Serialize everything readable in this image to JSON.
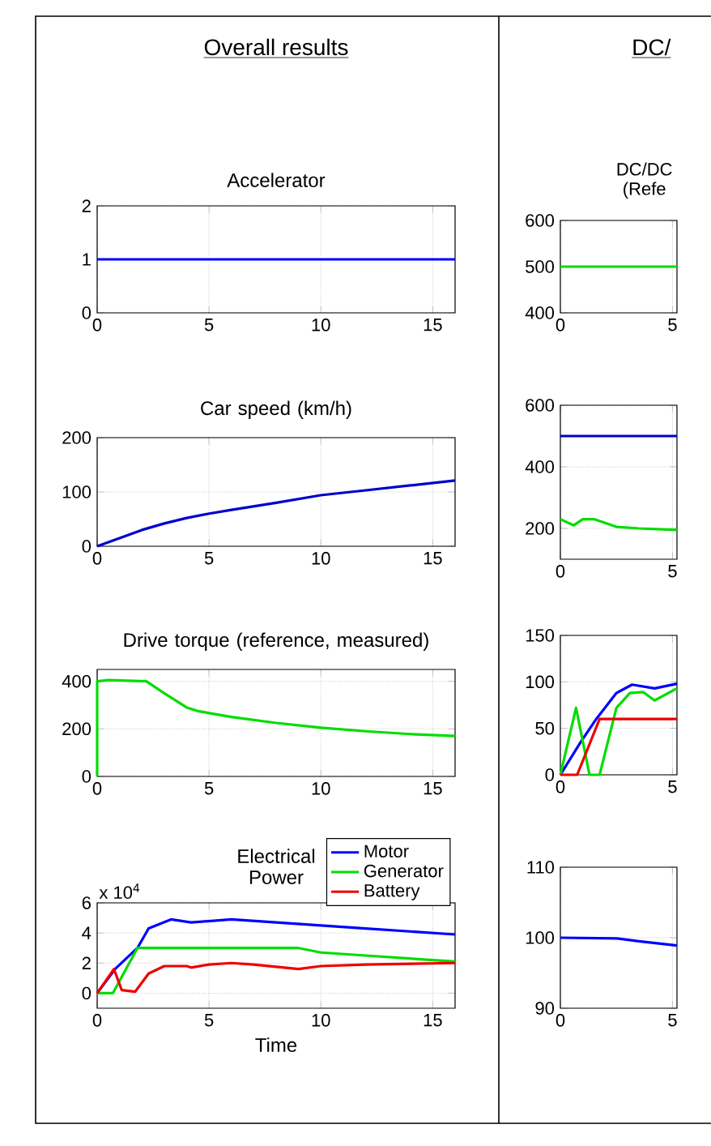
{
  "chart_data": [
    {
      "type": "line",
      "title": "Overall results",
      "subtitle": "Accelerator",
      "xlim": [
        0,
        16
      ],
      "ylim": [
        0,
        2
      ],
      "xticks": [
        0,
        5,
        10,
        15
      ],
      "yticks": [
        0,
        1,
        2
      ],
      "grid": true,
      "series": [
        {
          "color": "#0000ff",
          "x": [
            0,
            16
          ],
          "values": [
            1,
            1
          ]
        }
      ]
    },
    {
      "type": "line",
      "title": "Car speed (km/h)",
      "xlim": [
        0,
        16
      ],
      "ylim": [
        0,
        200
      ],
      "xticks": [
        0,
        5,
        10,
        15
      ],
      "yticks": [
        0,
        100,
        200
      ],
      "grid": true,
      "series": [
        {
          "color": "#0000cc",
          "x": [
            0,
            1,
            2,
            3,
            4,
            5,
            6,
            8,
            10,
            12,
            14,
            16
          ],
          "values": [
            0,
            15,
            30,
            42,
            52,
            60,
            67,
            80,
            94,
            103,
            112,
            121
          ]
        }
      ]
    },
    {
      "type": "line",
      "title": "Drive torque (reference, measured)",
      "xlim": [
        0,
        16
      ],
      "ylim": [
        0,
        450
      ],
      "xticks": [
        0,
        5,
        10,
        15
      ],
      "yticks": [
        0,
        200,
        400
      ],
      "grid": true,
      "series": [
        {
          "color": "#00dd00",
          "x": [
            0,
            0,
            0.5,
            2.2,
            3,
            4,
            4.5,
            6,
            8,
            10,
            12,
            14,
            16
          ],
          "values": [
            0,
            400,
            405,
            400,
            350,
            290,
            275,
            250,
            225,
            205,
            190,
            178,
            170
          ]
        }
      ]
    },
    {
      "type": "line",
      "title": "Electrical Power",
      "xlabel": "Time",
      "annotations": [
        "x 10$^{4}$"
      ],
      "xlim": [
        0,
        16
      ],
      "ylim": [
        -1,
        6
      ],
      "xticks": [
        0,
        5,
        10,
        15
      ],
      "yticks": [
        0,
        2,
        4,
        6
      ],
      "grid": true,
      "legend": "top right",
      "series": [
        {
          "name": "Motor",
          "color": "#0000ff",
          "x": [
            0,
            0.8,
            1.8,
            2.3,
            3.3,
            4.2,
            6,
            9,
            12,
            16
          ],
          "values": [
            0,
            1.6,
            3.0,
            4.3,
            4.9,
            4.7,
            4.9,
            4.6,
            4.3,
            3.9
          ]
        },
        {
          "name": "Generator",
          "color": "#00dd00",
          "x": [
            0,
            0.7,
            1.8,
            9,
            10,
            12,
            16
          ],
          "values": [
            0,
            0,
            3.0,
            3.0,
            2.7,
            2.5,
            2.1
          ]
        },
        {
          "name": "Battery",
          "color": "#ee0000",
          "x": [
            0,
            0.75,
            1.1,
            1.7,
            2.3,
            3,
            4,
            4.2,
            5,
            6,
            7,
            9,
            10,
            12,
            16
          ],
          "values": [
            0,
            1.6,
            0.2,
            0.1,
            1.3,
            1.8,
            1.8,
            1.7,
            1.9,
            2.0,
            1.9,
            1.6,
            1.8,
            1.9,
            2.0
          ]
        }
      ]
    },
    {
      "type": "line",
      "title": "DC/",
      "subtitle": "DC/DC (Refe",
      "xlim": [
        0,
        5.2
      ],
      "ylim": [
        400,
        600
      ],
      "xticks": [
        0,
        5
      ],
      "yticks": [
        400,
        500,
        600
      ],
      "grid": true,
      "series": [
        {
          "color": "#00dd00",
          "x": [
            0,
            5.2
          ],
          "values": [
            500,
            500
          ]
        }
      ]
    },
    {
      "type": "line",
      "xlim": [
        0,
        5.2
      ],
      "ylim": [
        100,
        600
      ],
      "xticks": [
        0,
        5
      ],
      "yticks": [
        200,
        400,
        600
      ],
      "grid": true,
      "series": [
        {
          "color": "#0000cc",
          "x": [
            0,
            5.2
          ],
          "values": [
            500,
            500
          ]
        },
        {
          "color": "#00dd00",
          "x": [
            0,
            0.6,
            1.0,
            1.5,
            2.5,
            3.5,
            5.2
          ],
          "values": [
            230,
            210,
            230,
            230,
            205,
            200,
            195
          ]
        }
      ]
    },
    {
      "type": "line",
      "xlim": [
        0,
        5.2
      ],
      "ylim": [
        0,
        150
      ],
      "xticks": [
        0,
        5
      ],
      "yticks": [
        0,
        50,
        100,
        150
      ],
      "grid": true,
      "series": [
        {
          "color": "#0000ff",
          "x": [
            0,
            0.9,
            1.6,
            2.5,
            3.2,
            4.2,
            5.2
          ],
          "values": [
            0,
            35,
            60,
            88,
            97,
            93,
            98
          ]
        },
        {
          "color": "#00dd00",
          "x": [
            0,
            0.7,
            1.3,
            1.75,
            2.5,
            3.1,
            3.7,
            4.2,
            5.2
          ],
          "values": [
            0,
            72,
            0,
            0,
            72,
            88,
            89,
            80,
            93
          ]
        },
        {
          "color": "#ee0000",
          "x": [
            0,
            0.75,
            1.75,
            5.2
          ],
          "values": [
            0,
            0,
            60,
            60
          ]
        }
      ]
    },
    {
      "type": "line",
      "xlim": [
        0,
        5.2
      ],
      "ylim": [
        90,
        110
      ],
      "xticks": [
        0,
        5
      ],
      "yticks": [
        90,
        100,
        110
      ],
      "grid": true,
      "series": [
        {
          "color": "#0000ff",
          "x": [
            0,
            2.5,
            3.5,
            5.2
          ],
          "values": [
            100,
            99.9,
            99.5,
            98.9
          ]
        }
      ]
    }
  ]
}
